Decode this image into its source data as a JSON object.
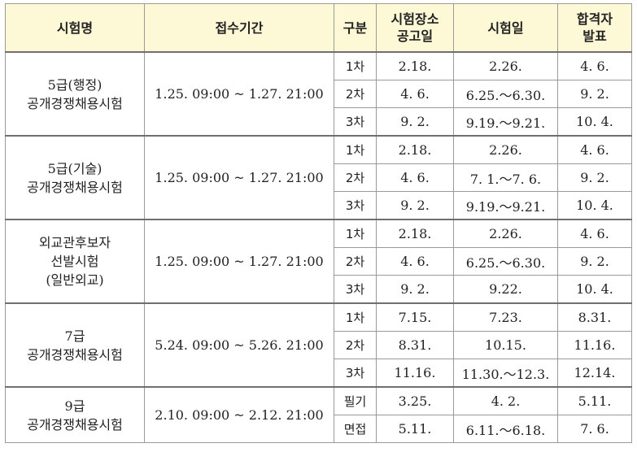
{
  "headers": {
    "exam": "시험명",
    "period": "접수기간",
    "stage": "구분",
    "venue_line1": "시험장소",
    "venue_line2": "공고일",
    "exam_date": "시험일",
    "result_line1": "합격자",
    "result_line2": "발표"
  },
  "groups": [
    {
      "name_lines": [
        "5급(행정)",
        "공개경쟁채용시험"
      ],
      "period": "1.25. 09:00 ~ 1.27. 21:00",
      "rows": [
        {
          "stage": "1차",
          "venue": "2.18.",
          "date": "2.26.",
          "result": "4. 6."
        },
        {
          "stage": "2차",
          "venue": "4. 6.",
          "date": "6.25.～6.30.",
          "result": "9. 2."
        },
        {
          "stage": "3차",
          "venue": "9. 2.",
          "date": "9.19.～9.21.",
          "result": "10. 4."
        }
      ]
    },
    {
      "name_lines": [
        "5급(기술)",
        "공개경쟁채용시험"
      ],
      "period": "1.25. 09:00 ~ 1.27. 21:00",
      "rows": [
        {
          "stage": "1차",
          "venue": "2.18.",
          "date": "2.26.",
          "result": "4. 6."
        },
        {
          "stage": "2차",
          "venue": "4. 6.",
          "date": "7. 1.～7. 6.",
          "result": "9. 2."
        },
        {
          "stage": "3차",
          "venue": "9. 2.",
          "date": "9.19.～9.21.",
          "result": "10. 4."
        }
      ]
    },
    {
      "name_lines": [
        "외교관후보자",
        "선발시험",
        "(일반외교)"
      ],
      "period": "1.25. 09:00 ~ 1.27. 21:00",
      "rows": [
        {
          "stage": "1차",
          "venue": "2.18.",
          "date": "2.26.",
          "result": "4. 6."
        },
        {
          "stage": "2차",
          "venue": "4. 6.",
          "date": "6.25.～6.30.",
          "result": "9. 2."
        },
        {
          "stage": "3차",
          "venue": "9. 2.",
          "date": "9.22.",
          "result": "10. 4."
        }
      ]
    },
    {
      "name_lines": [
        "7급",
        "공개경쟁채용시험"
      ],
      "period": "5.24. 09:00 ~ 5.26. 21:00",
      "rows": [
        {
          "stage": "1차",
          "venue": "7.15.",
          "date": "7.23.",
          "result": "8.31."
        },
        {
          "stage": "2차",
          "venue": "8.31.",
          "date": "10.15.",
          "result": "11.16."
        },
        {
          "stage": "3차",
          "venue": "11.16.",
          "date": "11.30.～12.3.",
          "result": "12.14."
        }
      ]
    },
    {
      "name_lines": [
        "9급",
        "공개경쟁채용시험"
      ],
      "period": "2.10. 09:00 ~ 2.12. 21:00",
      "rows": [
        {
          "stage": "필기",
          "venue": "3.25.",
          "date": "4. 2.",
          "result": "5.11."
        },
        {
          "stage": "면접",
          "venue": "5.11.",
          "date": "6.11.～6.18.",
          "result": "7. 6."
        }
      ]
    }
  ]
}
